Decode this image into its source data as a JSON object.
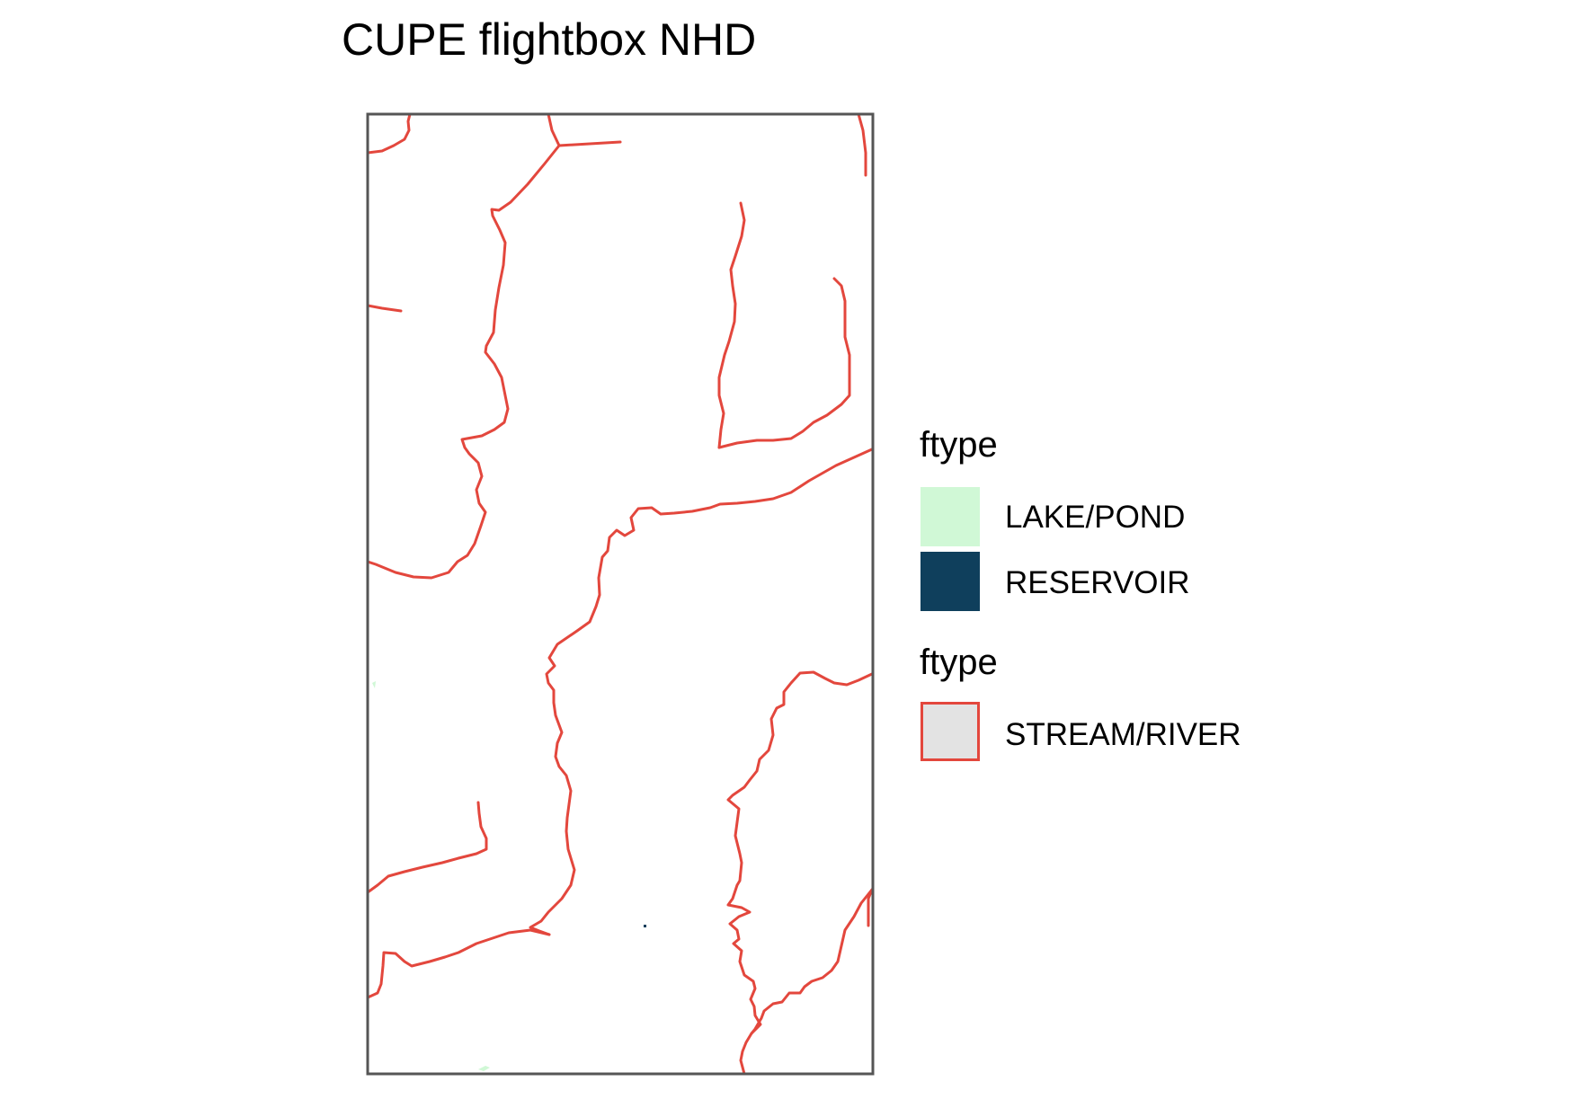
{
  "title": "CUPE flightbox NHD",
  "legend": {
    "waterbody": {
      "title": "ftype",
      "items": [
        {
          "label": "LAKE/POND",
          "color": "#d0f8d6"
        },
        {
          "label": "RESERVOIR",
          "color": "#0f3f5c"
        }
      ]
    },
    "flowline": {
      "title": "ftype",
      "items": [
        {
          "label": "STREAM/RIVER",
          "fill": "#e3e3e3",
          "stroke": "#e3473d"
        }
      ]
    }
  },
  "colors": {
    "stream": "#e3473d",
    "frame": "#555555",
    "lake": "#d0f8d6",
    "reservoir": "#0f3f5c"
  }
}
